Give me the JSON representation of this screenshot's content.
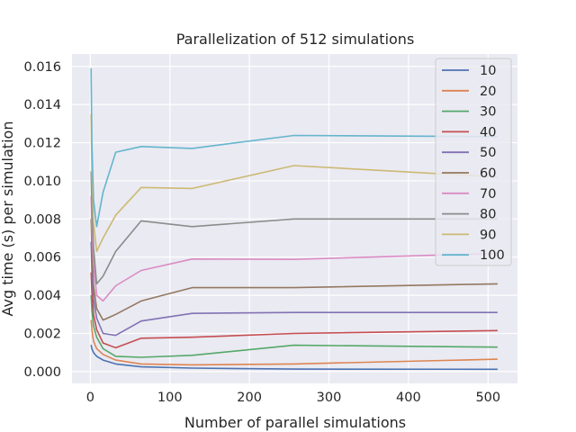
{
  "chart_data": {
    "type": "line",
    "title": "Parallelization of 512 simulations",
    "xlabel": "Number of parallel simulations",
    "ylabel": "Avg time (s) per simulation",
    "xlim": [
      -23,
      537
    ],
    "ylim": [
      -0.00062,
      0.01665
    ],
    "xticks": [
      0,
      100,
      200,
      300,
      400,
      500
    ],
    "xtick_labels": [
      "0",
      "100",
      "200",
      "300",
      "400",
      "500"
    ],
    "yticks": [
      0.0,
      0.002,
      0.004,
      0.006,
      0.008,
      0.01,
      0.012,
      0.014,
      0.016
    ],
    "ytick_labels": [
      "0.000",
      "0.002",
      "0.004",
      "0.006",
      "0.008",
      "0.010",
      "0.012",
      "0.014",
      "0.016"
    ],
    "grid": true,
    "legend_position": "upper-right",
    "background": "#eaeaf2",
    "x": [
      1,
      2,
      4,
      8,
      16,
      32,
      64,
      128,
      256,
      512
    ],
    "series": [
      {
        "name": "10",
        "color": "#4c72b0",
        "values": [
          0.0014,
          0.0012,
          0.001,
          0.0008,
          0.0006,
          0.0004,
          0.00025,
          0.00018,
          0.00013,
          0.00012
        ]
      },
      {
        "name": "20",
        "color": "#dd8452",
        "values": [
          0.0027,
          0.0022,
          0.0016,
          0.0012,
          0.0009,
          0.0006,
          0.0004,
          0.00035,
          0.0004,
          0.00065
        ]
      },
      {
        "name": "30",
        "color": "#55a868",
        "values": [
          0.004,
          0.0032,
          0.0024,
          0.0018,
          0.0012,
          0.0008,
          0.00075,
          0.00085,
          0.00138,
          0.00128
        ]
      },
      {
        "name": "40",
        "color": "#c44e52",
        "values": [
          0.0052,
          0.0042,
          0.003,
          0.0022,
          0.0015,
          0.00125,
          0.00175,
          0.0018,
          0.002,
          0.00215
        ]
      },
      {
        "name": "50",
        "color": "#8172b3",
        "values": [
          0.0068,
          0.0053,
          0.0038,
          0.0028,
          0.002,
          0.0019,
          0.00265,
          0.00305,
          0.0031,
          0.0031
        ]
      },
      {
        "name": "60",
        "color": "#937860",
        "values": [
          0.008,
          0.0064,
          0.0045,
          0.0033,
          0.0027,
          0.003,
          0.0037,
          0.0044,
          0.0044,
          0.0046
        ]
      },
      {
        "name": "70",
        "color": "#da8bc3",
        "values": [
          0.0092,
          0.0075,
          0.0057,
          0.004,
          0.0037,
          0.0045,
          0.0053,
          0.0059,
          0.00588,
          0.0062
        ]
      },
      {
        "name": "80",
        "color": "#8c8c8c",
        "values": [
          0.0105,
          0.0085,
          0.0065,
          0.0046,
          0.005,
          0.0063,
          0.0079,
          0.0076,
          0.008,
          0.008
        ]
      },
      {
        "name": "90",
        "color": "#ccb974",
        "values": [
          0.0135,
          0.0105,
          0.0078,
          0.0063,
          0.007,
          0.0082,
          0.00965,
          0.0096,
          0.0108,
          0.0102
        ]
      },
      {
        "name": "100",
        "color": "#64b5cd",
        "values": [
          0.0159,
          0.012,
          0.009,
          0.0076,
          0.0094,
          0.0115,
          0.0118,
          0.0117,
          0.01238,
          0.01232
        ]
      }
    ]
  }
}
